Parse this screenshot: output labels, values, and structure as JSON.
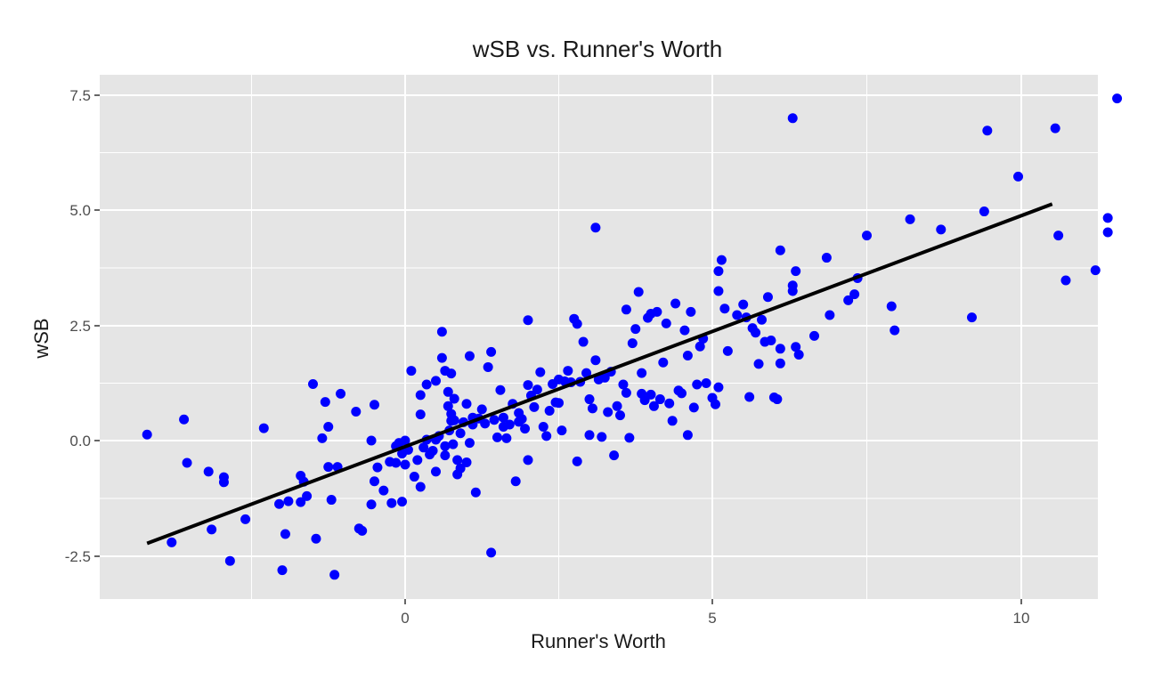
{
  "chart_data": {
    "type": "scatter",
    "title": "wSB vs. Runner's Worth",
    "xlabel": "Runner's Worth",
    "ylabel": "wSB",
    "xlim": [
      -4.8,
      11.2
    ],
    "ylim": [
      -3.4,
      7.8
    ],
    "x_ticks": [
      0,
      5,
      10
    ],
    "x_tick_labels": [
      "0",
      "5",
      "10"
    ],
    "y_ticks": [
      -2.5,
      0.0,
      2.5,
      5.0,
      7.5
    ],
    "y_tick_labels": [
      "-2.5",
      "0.0",
      "2.5",
      "5.0",
      "7.5"
    ],
    "grid": true,
    "colors": {
      "panel": "#e5e5e5",
      "grid": "#ffffff",
      "points": "#0000ff",
      "trend": "#000000"
    },
    "trend_line": {
      "x": [
        -4.2,
        10.5
      ],
      "y": [
        -2.22,
        5.13
      ]
    },
    "points": [
      [
        -4.2,
        0.13
      ],
      [
        -3.8,
        -2.2
      ],
      [
        -3.6,
        0.46
      ],
      [
        -3.55,
        -0.48
      ],
      [
        -3.2,
        -0.67
      ],
      [
        -3.15,
        -1.92
      ],
      [
        -2.95,
        -0.79
      ],
      [
        -2.95,
        -0.9
      ],
      [
        -2.85,
        -2.6
      ],
      [
        -2.6,
        -1.7
      ],
      [
        -2.3,
        0.27
      ],
      [
        -2.05,
        -1.37
      ],
      [
        -2.0,
        -2.8
      ],
      [
        -1.95,
        -2.02
      ],
      [
        -1.9,
        -1.31
      ],
      [
        -1.7,
        -1.33
      ],
      [
        -1.7,
        -0.76
      ],
      [
        -1.65,
        -0.89
      ],
      [
        -1.6,
        -1.2
      ],
      [
        -1.5,
        1.23
      ],
      [
        -1.45,
        -2.12
      ],
      [
        -1.35,
        0.05
      ],
      [
        -1.3,
        0.84
      ],
      [
        -1.25,
        0.3
      ],
      [
        -1.25,
        -0.57
      ],
      [
        -1.2,
        -1.28
      ],
      [
        -1.15,
        -2.9
      ],
      [
        -1.1,
        -0.57
      ],
      [
        -1.05,
        1.02
      ],
      [
        -0.8,
        0.63
      ],
      [
        -0.75,
        -1.9
      ],
      [
        -0.7,
        -1.95
      ],
      [
        -0.55,
        0.0
      ],
      [
        -0.55,
        -1.38
      ],
      [
        -0.5,
        0.78
      ],
      [
        -0.5,
        -0.88
      ],
      [
        -0.45,
        -0.58
      ],
      [
        -0.35,
        -1.08
      ],
      [
        -0.25,
        -0.46
      ],
      [
        -0.22,
        -1.35
      ],
      [
        -0.15,
        -0.48
      ],
      [
        -0.15,
        -0.12
      ],
      [
        -0.1,
        -0.05
      ],
      [
        -0.05,
        -0.28
      ],
      [
        -0.05,
        -1.32
      ],
      [
        0.0,
        -0.52
      ],
      [
        0.0,
        -0.0
      ],
      [
        0.05,
        -0.2
      ],
      [
        0.1,
        1.52
      ],
      [
        0.15,
        -0.78
      ],
      [
        0.2,
        -0.42
      ],
      [
        0.25,
        -1.0
      ],
      [
        0.25,
        0.57
      ],
      [
        0.25,
        0.99
      ],
      [
        0.3,
        -0.15
      ],
      [
        0.35,
        1.22
      ],
      [
        0.35,
        0.02
      ],
      [
        0.4,
        -0.3
      ],
      [
        0.45,
        -0.22
      ],
      [
        0.5,
        0.02
      ],
      [
        0.5,
        -0.67
      ],
      [
        0.5,
        1.3
      ],
      [
        0.55,
        0.1
      ],
      [
        0.6,
        1.8
      ],
      [
        0.6,
        2.37
      ],
      [
        0.65,
        1.52
      ],
      [
        0.65,
        -0.12
      ],
      [
        0.65,
        -0.32
      ],
      [
        0.7,
        0.75
      ],
      [
        0.7,
        1.06
      ],
      [
        0.72,
        0.22
      ],
      [
        0.75,
        0.43
      ],
      [
        0.75,
        1.46
      ],
      [
        0.75,
        0.58
      ],
      [
        0.78,
        -0.08
      ],
      [
        0.8,
        0.91
      ],
      [
        0.8,
        0.44
      ],
      [
        0.85,
        -0.73
      ],
      [
        0.85,
        -0.42
      ],
      [
        0.9,
        -0.6
      ],
      [
        0.9,
        0.16
      ],
      [
        0.95,
        0.4
      ],
      [
        1.0,
        -0.47
      ],
      [
        1.0,
        0.8
      ],
      [
        1.05,
        1.84
      ],
      [
        1.05,
        -0.05
      ],
      [
        1.1,
        0.5
      ],
      [
        1.1,
        0.35
      ],
      [
        1.15,
        -1.12
      ],
      [
        1.2,
        0.48
      ],
      [
        1.25,
        0.68
      ],
      [
        1.3,
        0.37
      ],
      [
        1.35,
        1.6
      ],
      [
        1.4,
        1.93
      ],
      [
        1.4,
        -2.42
      ],
      [
        1.45,
        0.45
      ],
      [
        1.5,
        0.07
      ],
      [
        1.55,
        1.1
      ],
      [
        1.6,
        0.5
      ],
      [
        1.6,
        0.3
      ],
      [
        1.65,
        0.05
      ],
      [
        1.7,
        0.35
      ],
      [
        1.75,
        0.8
      ],
      [
        1.8,
        -0.88
      ],
      [
        1.85,
        0.6
      ],
      [
        1.85,
        0.41
      ],
      [
        1.9,
        0.47
      ],
      [
        1.95,
        0.26
      ],
      [
        2.0,
        1.21
      ],
      [
        2.0,
        2.62
      ],
      [
        2.0,
        -0.42
      ],
      [
        2.05,
        0.98
      ],
      [
        2.1,
        0.73
      ],
      [
        2.15,
        1.11
      ],
      [
        2.2,
        1.49
      ],
      [
        2.25,
        0.3
      ],
      [
        2.3,
        0.1
      ],
      [
        2.35,
        0.65
      ],
      [
        2.4,
        1.23
      ],
      [
        2.45,
        0.83
      ],
      [
        2.5,
        1.33
      ],
      [
        2.5,
        0.82
      ],
      [
        2.55,
        0.22
      ],
      [
        2.6,
        1.29
      ],
      [
        2.65,
        1.52
      ],
      [
        2.7,
        1.27
      ],
      [
        2.75,
        2.65
      ],
      [
        2.8,
        2.54
      ],
      [
        2.8,
        -0.45
      ],
      [
        2.85,
        1.28
      ],
      [
        2.9,
        2.15
      ],
      [
        2.95,
        1.47
      ],
      [
        3.0,
        0.9
      ],
      [
        3.0,
        0.12
      ],
      [
        3.05,
        0.7
      ],
      [
        3.1,
        4.62
      ],
      [
        3.1,
        1.75
      ],
      [
        3.15,
        1.33
      ],
      [
        3.2,
        0.08
      ],
      [
        3.25,
        1.37
      ],
      [
        3.3,
        0.62
      ],
      [
        3.35,
        1.5
      ],
      [
        3.4,
        -0.32
      ],
      [
        3.45,
        0.75
      ],
      [
        3.5,
        0.55
      ],
      [
        3.55,
        1.22
      ],
      [
        3.6,
        2.85
      ],
      [
        3.6,
        1.04
      ],
      [
        3.65,
        0.06
      ],
      [
        3.7,
        2.12
      ],
      [
        3.75,
        2.43
      ],
      [
        3.8,
        3.23
      ],
      [
        3.85,
        1.47
      ],
      [
        3.85,
        1.02
      ],
      [
        3.9,
        0.88
      ],
      [
        3.95,
        2.67
      ],
      [
        4.0,
        2.76
      ],
      [
        4.0,
        1.0
      ],
      [
        4.05,
        0.75
      ],
      [
        4.1,
        2.8
      ],
      [
        4.15,
        0.9
      ],
      [
        4.2,
        1.7
      ],
      [
        4.25,
        2.55
      ],
      [
        4.3,
        0.81
      ],
      [
        4.35,
        0.43
      ],
      [
        4.4,
        2.98
      ],
      [
        4.45,
        1.09
      ],
      [
        4.5,
        1.03
      ],
      [
        4.55,
        2.4
      ],
      [
        4.6,
        0.12
      ],
      [
        4.6,
        1.85
      ],
      [
        4.65,
        2.8
      ],
      [
        4.7,
        0.72
      ],
      [
        4.75,
        1.22
      ],
      [
        4.8,
        2.05
      ],
      [
        4.85,
        2.22
      ],
      [
        4.9,
        1.25
      ],
      [
        5.0,
        0.93
      ],
      [
        5.05,
        0.79
      ],
      [
        5.1,
        1.16
      ],
      [
        5.1,
        3.68
      ],
      [
        5.1,
        3.25
      ],
      [
        5.15,
        3.92
      ],
      [
        5.2,
        2.87
      ],
      [
        5.25,
        1.95
      ],
      [
        5.4,
        2.73
      ],
      [
        5.5,
        2.96
      ],
      [
        5.55,
        2.68
      ],
      [
        5.6,
        0.95
      ],
      [
        5.65,
        2.45
      ],
      [
        5.7,
        2.35
      ],
      [
        5.75,
        1.67
      ],
      [
        5.8,
        2.63
      ],
      [
        5.85,
        2.15
      ],
      [
        5.9,
        3.12
      ],
      [
        5.95,
        2.18
      ],
      [
        6.0,
        0.94
      ],
      [
        6.05,
        0.9
      ],
      [
        6.1,
        2.0
      ],
      [
        6.1,
        1.68
      ],
      [
        6.1,
        4.13
      ],
      [
        6.3,
        7.0
      ],
      [
        6.3,
        3.37
      ],
      [
        6.3,
        3.25
      ],
      [
        6.35,
        3.68
      ],
      [
        6.35,
        2.04
      ],
      [
        6.4,
        1.87
      ],
      [
        6.65,
        2.28
      ],
      [
        6.85,
        3.97
      ],
      [
        6.9,
        2.73
      ],
      [
        7.2,
        3.05
      ],
      [
        7.3,
        3.18
      ],
      [
        7.35,
        3.53
      ],
      [
        7.5,
        4.45
      ],
      [
        7.9,
        2.92
      ],
      [
        7.95,
        2.4
      ],
      [
        8.2,
        4.8
      ],
      [
        8.7,
        4.58
      ],
      [
        9.2,
        2.68
      ],
      [
        9.4,
        4.97
      ],
      [
        9.45,
        6.73
      ],
      [
        9.95,
        5.73
      ],
      [
        10.55,
        6.78
      ],
      [
        10.6,
        4.45
      ],
      [
        10.72,
        3.48
      ],
      [
        11.2,
        3.7
      ],
      [
        11.4,
        4.83
      ],
      [
        11.4,
        4.52
      ],
      [
        11.55,
        7.43
      ]
    ]
  }
}
